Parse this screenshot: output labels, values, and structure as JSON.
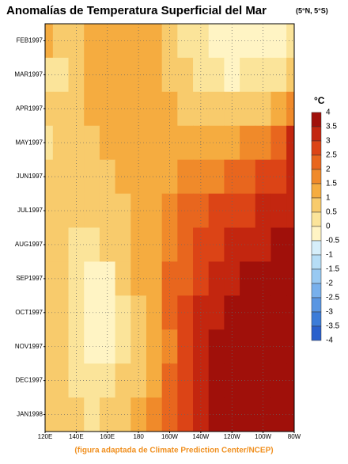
{
  "chart_data": {
    "type": "heatmap",
    "title": "Anomalías de Temperatura Superficial del Mar",
    "subtitle": "(5°N, 5°S)",
    "caption": "(figura adaptada de Climate Prediction Center/NCEP)",
    "x": [
      120,
      130,
      140,
      150,
      160,
      170,
      180,
      190,
      200,
      210,
      220,
      230,
      240,
      250,
      260,
      270,
      280
    ],
    "xlim": [
      120,
      280
    ],
    "xticks": [
      {
        "value": 120,
        "label": "120E"
      },
      {
        "value": 140,
        "label": "140E"
      },
      {
        "value": 160,
        "label": "160E"
      },
      {
        "value": 180,
        "label": "180"
      },
      {
        "value": 200,
        "label": "160W"
      },
      {
        "value": 220,
        "label": "140W"
      },
      {
        "value": 240,
        "label": "120W"
      },
      {
        "value": 260,
        "label": "100W"
      },
      {
        "value": 280,
        "label": "80W"
      }
    ],
    "categories": [
      "FEB1997",
      "MAR1997",
      "APR1997",
      "MAY1997",
      "JUN1997",
      "JUL1997",
      "AUG1997",
      "SEP1997",
      "OCT1997",
      "NOV1997",
      "DEC1997",
      "JAN1998"
    ],
    "z": [
      [
        1,
        0.5,
        0.5,
        1,
        1,
        1,
        1,
        1,
        0.5,
        0,
        0,
        -0.5,
        -0.5,
        -0.5,
        -0.5,
        -0.5,
        0
      ],
      [
        0,
        0,
        0.5,
        1,
        1,
        1,
        1,
        1,
        0.5,
        0.5,
        0,
        0,
        -0.5,
        0,
        0,
        0,
        0.5
      ],
      [
        0.5,
        0.5,
        0.5,
        1,
        1,
        1,
        1,
        1,
        1,
        0.5,
        0.5,
        0.5,
        0.5,
        0.5,
        0.5,
        1,
        1.5
      ],
      [
        0,
        0.5,
        0.5,
        0.5,
        1,
        1,
        1,
        1,
        1,
        1,
        1,
        1,
        1,
        1.5,
        1.5,
        2,
        3
      ],
      [
        0.5,
        0.5,
        0.5,
        0.5,
        0.5,
        1,
        1,
        1,
        1,
        1.5,
        1.5,
        1.5,
        2,
        2,
        2.5,
        2.5,
        3
      ],
      [
        0.5,
        0.5,
        0.5,
        0.5,
        0.5,
        0.5,
        1,
        1,
        1.5,
        2,
        2,
        2.5,
        2.5,
        2.5,
        3,
        3,
        3
      ],
      [
        0.5,
        0.5,
        0,
        0,
        0.5,
        0.5,
        1,
        1,
        1.5,
        2,
        2.5,
        2.5,
        3,
        3,
        3,
        3.5,
        3.5
      ],
      [
        0.5,
        0.5,
        0,
        -0.5,
        -0.5,
        0.5,
        1,
        1,
        2,
        2,
        2.5,
        3,
        3,
        3.5,
        3.5,
        3.5,
        3.5
      ],
      [
        0.5,
        0.5,
        0,
        -0.5,
        -0.5,
        0,
        0.5,
        1,
        2,
        2.5,
        3,
        3,
        3.5,
        3.5,
        4,
        4,
        3.5
      ],
      [
        0.5,
        0.5,
        0,
        -0.5,
        -0.5,
        0,
        0.5,
        1,
        1.5,
        2.5,
        3,
        3.5,
        3.5,
        4,
        4,
        4,
        3.5
      ],
      [
        0.5,
        0.5,
        0,
        0,
        0,
        0.5,
        0.5,
        1,
        2,
        2.5,
        3,
        3.5,
        4,
        4.5,
        4.5,
        4,
        3.5
      ],
      [
        0.5,
        0.5,
        0.5,
        0,
        0.5,
        0.5,
        1,
        1.5,
        2,
        2.5,
        3,
        3.5,
        4,
        4.5,
        4.5,
        4,
        3.5
      ]
    ],
    "grid": true,
    "colorbar": {
      "label": "°C",
      "levels": [
        4,
        3.5,
        3,
        2.5,
        2,
        1.5,
        1,
        0.5,
        0,
        -0.5,
        -1,
        -1.5,
        -2,
        -2.5,
        -3,
        -3.5,
        -4
      ],
      "colors": [
        "#a0100a",
        "#c3260f",
        "#dc4416",
        "#e8661e",
        "#f08a2a",
        "#f5ac40",
        "#f8cb6c",
        "#fbe49a",
        "#fff4c4",
        "#d6eefa",
        "#b6ddf6",
        "#98c9f2",
        "#78b0ec",
        "#5a96e2",
        "#3c7cd8",
        "#2a60cc"
      ]
    }
  }
}
